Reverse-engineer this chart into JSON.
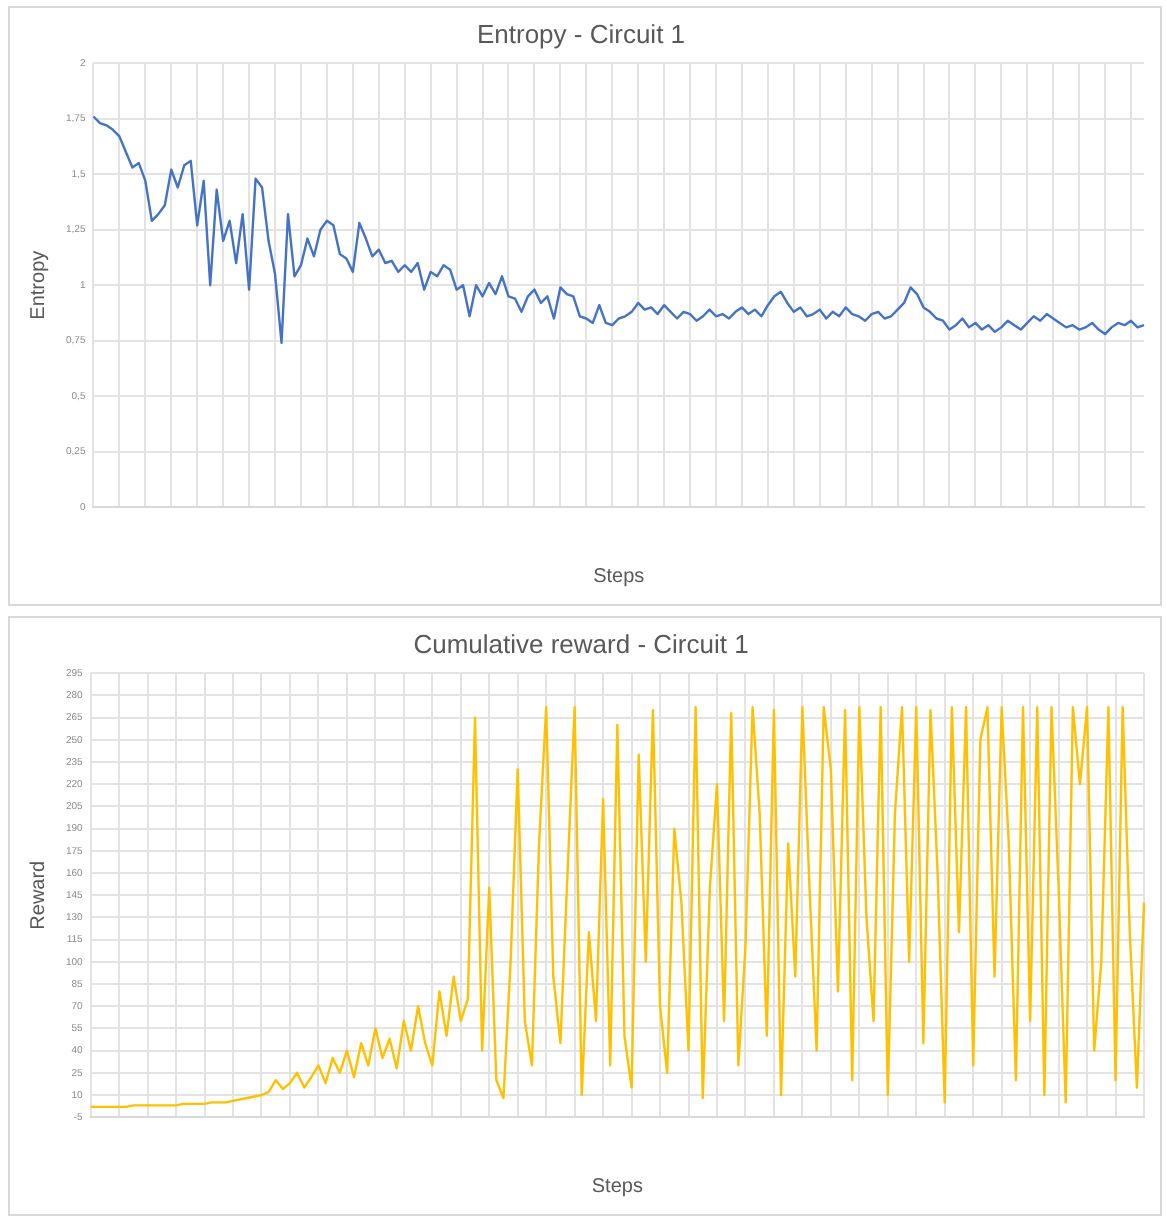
{
  "chart_data": [
    {
      "type": "line",
      "title": "Entropy - Circuit 1",
      "xlabel": "Steps",
      "ylabel": "Entropy",
      "grid": true,
      "legend": false,
      "marker": "none",
      "ylim": [
        0,
        2
      ],
      "yticks": [
        0,
        {
          "value": 0.25,
          "label": "0,25"
        },
        {
          "value": 0.5,
          "label": "0,5"
        },
        {
          "value": 0.75,
          "label": "0,75"
        },
        1,
        {
          "value": 1.25,
          "label": "1,25"
        },
        {
          "value": 1.5,
          "label": "1,5"
        },
        {
          "value": 1.75,
          "label": "1,75"
        },
        2
      ],
      "categories": [
        null,
        null,
        null,
        null,
        null,
        null,
        null,
        null,
        null,
        null,
        null,
        null,
        null,
        null,
        null,
        null,
        null,
        null,
        null,
        null,
        null,
        null,
        null,
        null,
        null,
        null,
        null,
        null,
        null,
        null,
        null,
        null,
        null,
        null,
        null,
        null,
        null,
        null,
        null,
        null,
        null,
        null,
        null,
        null,
        null,
        null,
        null,
        null,
        null,
        null,
        null,
        null,
        null,
        null,
        null,
        null,
        null,
        null,
        null,
        null,
        null,
        null,
        null,
        null,
        null,
        null,
        null,
        null,
        null,
        null,
        null,
        null,
        null,
        null,
        null,
        null,
        null,
        null,
        null,
        null,
        null,
        null,
        null,
        null,
        null,
        null,
        null,
        null,
        null,
        null,
        null,
        null,
        null,
        null,
        null,
        null,
        null,
        null,
        null,
        null,
        null,
        null,
        null,
        null,
        null,
        null,
        null,
        null,
        null,
        null,
        null,
        null,
        null,
        null,
        null,
        null,
        null,
        null,
        null,
        null,
        null,
        null,
        null,
        null,
        null,
        null,
        null,
        null,
        null,
        null,
        null,
        null,
        null,
        null,
        null,
        null,
        null,
        null,
        null,
        null,
        null,
        null,
        null,
        null,
        null,
        null,
        null,
        null,
        null,
        null,
        null,
        null,
        null,
        null,
        null,
        null,
        null,
        null,
        null,
        null,
        null,
        null,
        null
      ],
      "series": [
        {
          "color": "#4472c4",
          "values": [
            1.76,
            1.73,
            1.72,
            1.7,
            1.67,
            1.6,
            1.53,
            1.55,
            1.47,
            1.29,
            1.32,
            1.36,
            1.52,
            1.44,
            1.54,
            1.56,
            1.27,
            1.47,
            1.0,
            1.43,
            1.2,
            1.29,
            1.1,
            1.32,
            0.98,
            1.48,
            1.44,
            1.2,
            1.05,
            0.74,
            1.32,
            1.04,
            1.09,
            1.21,
            1.13,
            1.25,
            1.29,
            1.27,
            1.14,
            1.12,
            1.06,
            1.28,
            1.21,
            1.13,
            1.16,
            1.1,
            1.11,
            1.06,
            1.09,
            1.06,
            1.1,
            0.98,
            1.06,
            1.04,
            1.09,
            1.07,
            0.98,
            1.0,
            0.86,
            1.0,
            0.95,
            1.01,
            0.96,
            1.04,
            0.95,
            0.94,
            0.88,
            0.95,
            0.98,
            0.92,
            0.95,
            0.85,
            0.99,
            0.96,
            0.95,
            0.86,
            0.85,
            0.83,
            0.91,
            0.83,
            0.82,
            0.85,
            0.86,
            0.88,
            0.92,
            0.89,
            0.9,
            0.87,
            0.91,
            0.88,
            0.85,
            0.88,
            0.87,
            0.84,
            0.86,
            0.89,
            0.86,
            0.87,
            0.85,
            0.88,
            0.9,
            0.87,
            0.89,
            0.86,
            0.91,
            0.95,
            0.97,
            0.92,
            0.88,
            0.9,
            0.86,
            0.87,
            0.89,
            0.85,
            0.88,
            0.86,
            0.9,
            0.87,
            0.86,
            0.84,
            0.87,
            0.88,
            0.85,
            0.86,
            0.89,
            0.92,
            0.99,
            0.96,
            0.9,
            0.88,
            0.85,
            0.84,
            0.8,
            0.82,
            0.85,
            0.81,
            0.83,
            0.8,
            0.82,
            0.79,
            0.81,
            0.84,
            0.82,
            0.8,
            0.83,
            0.86,
            0.84,
            0.87,
            0.85,
            0.83,
            0.81,
            0.82,
            0.8,
            0.81,
            0.83,
            0.8,
            0.78,
            0.81,
            0.83,
            0.82,
            0.84,
            0.81,
            0.82
          ]
        }
      ]
    },
    {
      "type": "line",
      "title": "Cumulative reward - Circuit 1",
      "xlabel": "Steps",
      "ylabel": "Reward",
      "grid": true,
      "legend": false,
      "marker": "none",
      "ylim": [
        -5,
        295
      ],
      "yticks": [
        -5,
        10,
        25,
        40,
        55,
        70,
        85,
        100,
        115,
        130,
        145,
        160,
        175,
        190,
        205,
        220,
        235,
        250,
        265,
        280,
        295
      ],
      "categories": [
        null,
        null,
        null,
        null,
        null,
        null,
        null,
        null,
        null,
        null,
        null,
        null,
        null,
        null,
        null,
        null,
        null,
        null,
        null,
        null,
        null,
        null,
        null,
        null,
        null,
        null,
        null,
        null,
        null,
        null,
        null,
        null,
        null,
        null,
        null,
        null,
        null,
        null,
        null,
        null,
        null,
        null,
        null,
        null,
        null,
        null,
        null,
        null,
        null,
        null,
        null,
        null,
        null,
        null,
        null,
        null,
        null,
        null,
        null,
        null,
        null,
        null,
        null,
        null,
        null,
        null,
        null,
        null,
        null,
        null,
        null,
        null,
        null,
        null,
        null,
        null,
        null,
        null,
        null,
        null,
        null,
        null,
        null,
        null,
        null,
        null,
        null,
        null,
        null,
        null,
        null,
        null,
        null,
        null,
        null,
        null,
        null,
        null,
        null,
        null,
        null,
        null,
        null,
        null,
        null,
        null,
        null,
        null,
        null,
        null,
        null,
        null,
        null,
        null,
        null,
        null,
        null,
        null,
        null,
        null,
        null,
        null,
        null,
        null,
        null,
        null,
        null,
        null,
        null,
        null,
        null,
        null,
        null,
        null,
        null,
        null,
        null,
        null,
        null,
        null,
        null,
        null,
        null,
        null,
        null,
        null,
        null,
        null,
        null
      ],
      "series": [
        {
          "color": "#ffc000",
          "values": [
            2,
            2,
            2,
            2,
            2,
            2,
            3,
            3,
            3,
            3,
            3,
            3,
            3,
            4,
            4,
            4,
            4,
            5,
            5,
            5,
            6,
            7,
            8,
            9,
            10,
            12,
            20,
            14,
            18,
            25,
            15,
            22,
            30,
            18,
            35,
            25,
            40,
            22,
            45,
            30,
            55,
            35,
            48,
            28,
            60,
            40,
            70,
            45,
            30,
            80,
            50,
            90,
            60,
            75,
            265,
            40,
            150,
            20,
            8,
            100,
            230,
            60,
            30,
            180,
            272,
            90,
            45,
            160,
            272,
            10,
            120,
            60,
            210,
            30,
            260,
            50,
            15,
            240,
            100,
            270,
            70,
            25,
            190,
            140,
            40,
            272,
            8,
            150,
            220,
            60,
            268,
            30,
            110,
            272,
            200,
            50,
            270,
            10,
            180,
            90,
            272,
            150,
            40,
            272,
            230,
            80,
            270,
            20,
            272,
            130,
            60,
            272,
            10,
            200,
            272,
            100,
            272,
            45,
            270,
            160,
            5,
            272,
            120,
            272,
            30,
            250,
            272,
            90,
            272,
            180,
            20,
            272,
            60,
            272,
            10,
            272,
            150,
            5,
            272,
            220,
            272,
            40,
            100,
            272,
            20,
            272,
            120,
            15,
            140
          ]
        }
      ]
    }
  ]
}
